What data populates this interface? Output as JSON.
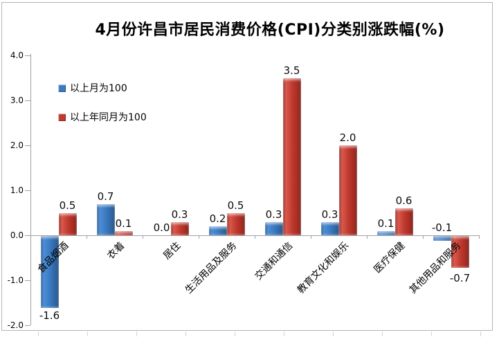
{
  "title": "4月份许昌市居民消费价格(CPI)分类别涨跌幅(%)",
  "chart_data": {
    "type": "bar",
    "title": "4月份许昌市居民消费价格(CPI)分类别涨跌幅(%)",
    "categories": [
      "食品烟酒",
      "衣着",
      "居住",
      "生活用品及服务",
      "交通和通信",
      "教育文化和娱乐",
      "医疗保健",
      "其他用品和服务"
    ],
    "series": [
      {
        "name": "以上月为100",
        "color": "#3b7ac1",
        "values": [
          -1.6,
          0.7,
          0.0,
          0.2,
          0.3,
          0.3,
          0.1,
          -0.1
        ],
        "labels": [
          "-1.6",
          "0.7",
          "0.0",
          "0.2",
          "0.3",
          "0.3",
          "0.1",
          "-0.1"
        ]
      },
      {
        "name": "以上年同月为100",
        "color": "#c23a2f",
        "values": [
          0.5,
          0.1,
          0.3,
          0.5,
          3.5,
          2.0,
          0.6,
          -0.7
        ],
        "labels": [
          "0.5",
          "0.1",
          "0.3",
          "0.5",
          "3.5",
          "2.0",
          "0.6",
          "-0.7"
        ]
      }
    ],
    "xlabel": "",
    "ylabel": "",
    "ylim": [
      -2.0,
      4.0
    ],
    "ytick_labels": [
      "4.0",
      "3.0",
      "2.0",
      "1.0",
      "0.0",
      "-1.0",
      "-2.0"
    ],
    "legend_position": "inside-top-left",
    "grid": false
  }
}
